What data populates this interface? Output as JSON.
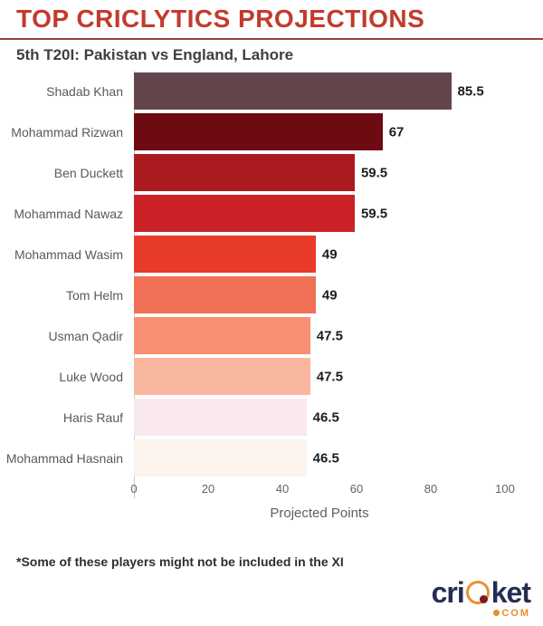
{
  "header": {
    "title": "TOP CRICLYTICS PROJECTIONS",
    "subtitle": "5th T20I: Pakistan vs England, Lahore"
  },
  "chart_data": {
    "type": "bar",
    "orientation": "horizontal",
    "title": "TOP CRICLYTICS PROJECTIONS",
    "subtitle": "5th T20I: Pakistan vs England, Lahore",
    "xlabel": "Projected Points",
    "xlim": [
      0,
      105
    ],
    "xticks": [
      0,
      20,
      40,
      60,
      80,
      100
    ],
    "grid": false,
    "legend": false,
    "categories": [
      "Shadab Khan",
      "Mohammad Rizwan",
      "Ben Duckett",
      "Mohammad Nawaz",
      "Mohammad Wasim",
      "Tom Helm",
      "Usman Qadir",
      "Luke Wood",
      "Haris Rauf",
      "Mohammad Hasnain"
    ],
    "values": [
      85.5,
      67,
      59.5,
      59.5,
      49,
      49,
      47.5,
      47.5,
      46.5,
      46.5
    ],
    "value_labels": [
      "85.5",
      "67",
      "59.5",
      "59.5",
      "49",
      "49",
      "47.5",
      "47.5",
      "46.5",
      "46.5"
    ],
    "bar_colors": [
      "#63464b",
      "#6e0a12",
      "#ab1a1e",
      "#ca2127",
      "#e83b29",
      "#f07056",
      "#f98f72",
      "#f9b7a0",
      "#f9e9ec",
      "#fdf4ee"
    ]
  },
  "footnote": "*Some of these players might not be included in the XI",
  "logo": {
    "word_start": "cri",
    "word_end": "ket",
    "tld": "COM"
  },
  "colors": {
    "title": "#c23b2c",
    "title_rule": "#96423c",
    "subtitle": "#3f3f3f",
    "axis_text": "#636363",
    "player_label": "#58595b",
    "logo_navy": "#252d52",
    "logo_orange": "#ef8b22"
  }
}
